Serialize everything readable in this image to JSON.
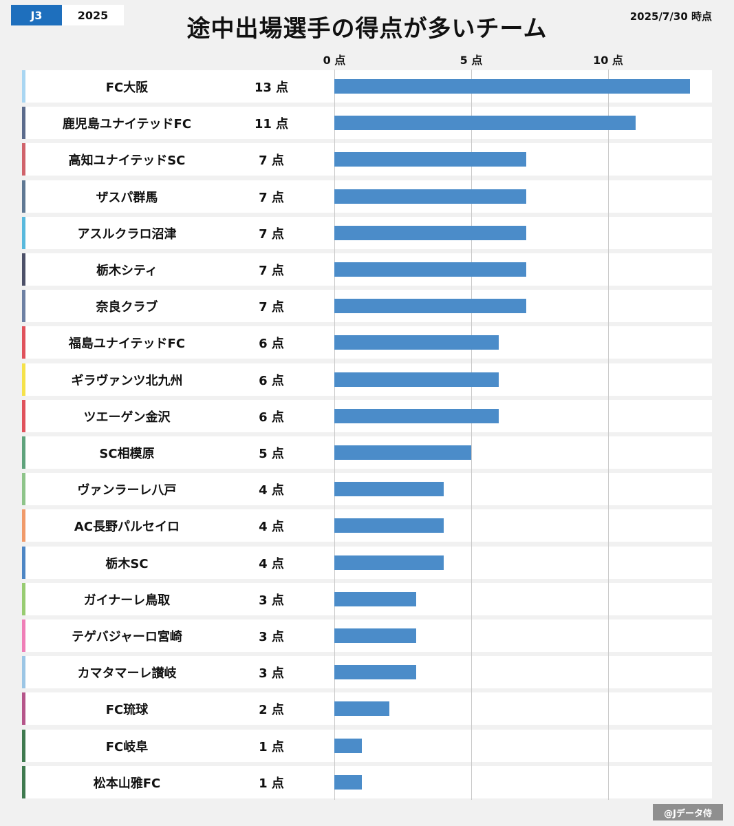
{
  "header": {
    "league": "J3",
    "year": "2025",
    "title": "途中出場選手の得点が多いチーム",
    "as_of": "2025/7/30 時点"
  },
  "credit": "@Jデータ侍",
  "chart_data": {
    "type": "bar",
    "orientation": "horizontal",
    "title": "途中出場選手の得点が多いチーム",
    "xlim": [
      0,
      13
    ],
    "ticks": [
      0,
      5,
      10
    ],
    "tick_labels": [
      "0 点",
      "5 点",
      "10 点"
    ],
    "value_unit": "点",
    "bar_color": "#4b8cc9",
    "grid": true,
    "categories": [
      "FC大阪",
      "鹿児島ユナイテッドFC",
      "高知ユナイテッドSC",
      "ザスパ群馬",
      "アスルクラロ沼津",
      "栃木シティ",
      "奈良クラブ",
      "福島ユナイテッドFC",
      "ギラヴァンツ北九州",
      "ツエーゲン金沢",
      "SC相模原",
      "ヴァンラーレ八戸",
      "AC長野パルセイロ",
      "栃木SC",
      "ガイナーレ鳥取",
      "テゲバジャーロ宮崎",
      "カマタマーレ讃岐",
      "FC琉球",
      "FC岐阜",
      "松本山雅FC"
    ],
    "values": [
      13,
      11,
      7,
      7,
      7,
      7,
      7,
      6,
      6,
      6,
      5,
      4,
      4,
      4,
      3,
      3,
      3,
      2,
      1,
      1
    ],
    "value_labels": [
      "13 点",
      "11 点",
      "7 点",
      "7 点",
      "7 点",
      "7 点",
      "7 点",
      "6 点",
      "6 点",
      "6 点",
      "5 点",
      "4 点",
      "4 点",
      "4 点",
      "3 点",
      "3 点",
      "3 点",
      "2 点",
      "1 点",
      "1 点"
    ],
    "team_colors": [
      "#a9d6f2",
      "#5b6b8c",
      "#d0636b",
      "#5f7893",
      "#58b9dd",
      "#4c5068",
      "#6d80a3",
      "#e0525c",
      "#f5e24a",
      "#e0525c",
      "#5fa37c",
      "#8ec48a",
      "#f09a6a",
      "#4d86c4",
      "#98cc72",
      "#ef7fb7",
      "#9cc6e5",
      "#b5558a",
      "#3f7a4f",
      "#3f7a4f"
    ]
  }
}
